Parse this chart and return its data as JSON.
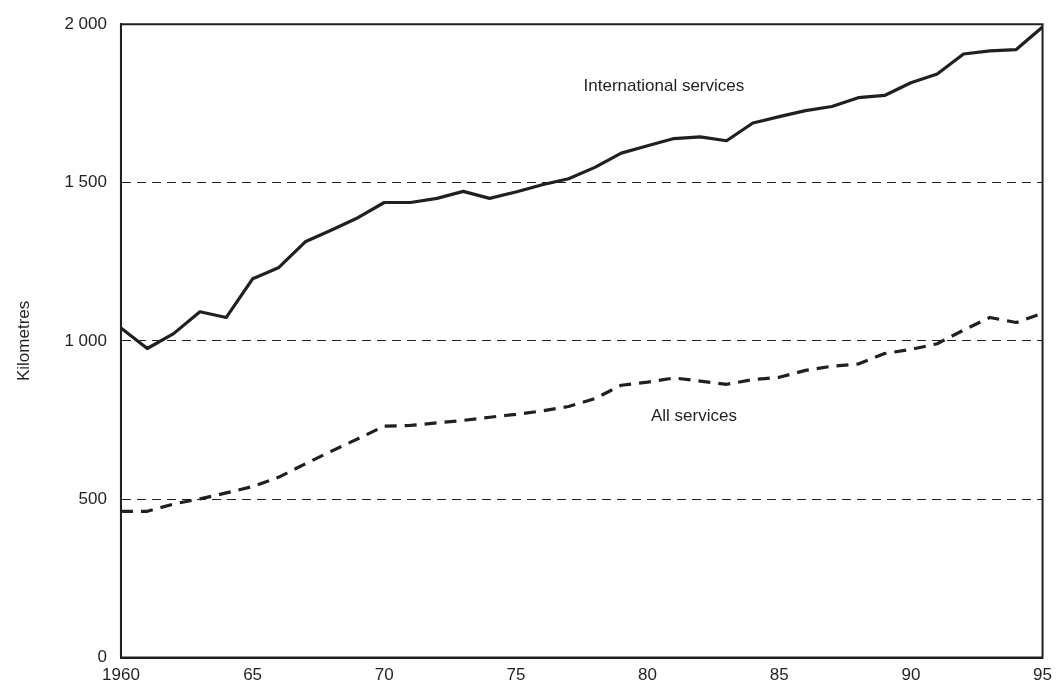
{
  "chart_data": {
    "type": "line",
    "ylabel": "Kilometres",
    "x": [
      1960,
      1961,
      1962,
      1963,
      1964,
      1965,
      1966,
      1967,
      1968,
      1969,
      1970,
      1971,
      1972,
      1973,
      1974,
      1975,
      1976,
      1977,
      1978,
      1979,
      1980,
      1981,
      1982,
      1983,
      1984,
      1985,
      1986,
      1987,
      1988,
      1989,
      1990,
      1991,
      1992,
      1993,
      1994,
      1995
    ],
    "series": [
      {
        "name": "International services",
        "color": "#231f20",
        "line_style": "solid",
        "values": [
          1041,
          976,
          1023,
          1092,
          1074,
          1196,
          1232,
          1313,
          1350,
          1389,
          1437,
          1437,
          1450,
          1472,
          1450,
          1470,
          1493,
          1512,
          1548,
          1593,
          1616,
          1639,
          1644,
          1632,
          1688,
          1708,
          1727,
          1740,
          1768,
          1775,
          1815,
          1843,
          1906,
          1916,
          1920,
          1991
        ]
      },
      {
        "name": "All services",
        "color": "#231f20",
        "line_style": "dashed",
        "values": [
          462,
          462,
          485,
          501,
          520,
          540,
          570,
          612,
          652,
          691,
          731,
          733,
          741,
          749,
          759,
          768,
          779,
          793,
          818,
          860,
          870,
          883,
          873,
          863,
          878,
          885,
          907,
          920,
          927,
          960,
          973,
          991,
          1034,
          1074,
          1058,
          1087
        ]
      }
    ],
    "xlim": [
      1960,
      1995
    ],
    "xticks": [
      {
        "value": 1960,
        "label": "1960"
      },
      {
        "value": 1965,
        "label": "65"
      },
      {
        "value": 1970,
        "label": "70"
      },
      {
        "value": 1975,
        "label": "75"
      },
      {
        "value": 1980,
        "label": "80"
      },
      {
        "value": 1985,
        "label": "85"
      },
      {
        "value": 1990,
        "label": "90"
      },
      {
        "value": 1995,
        "label": "95"
      }
    ],
    "ylim": [
      0,
      2000
    ],
    "yticks": [
      0,
      500,
      {
        "value": 1000,
        "label": "1 000"
      },
      {
        "value": 1500,
        "label": "1 500"
      },
      {
        "value": 2000,
        "label": "2 000"
      }
    ],
    "grid": "y",
    "legend": false,
    "marker": "none"
  }
}
